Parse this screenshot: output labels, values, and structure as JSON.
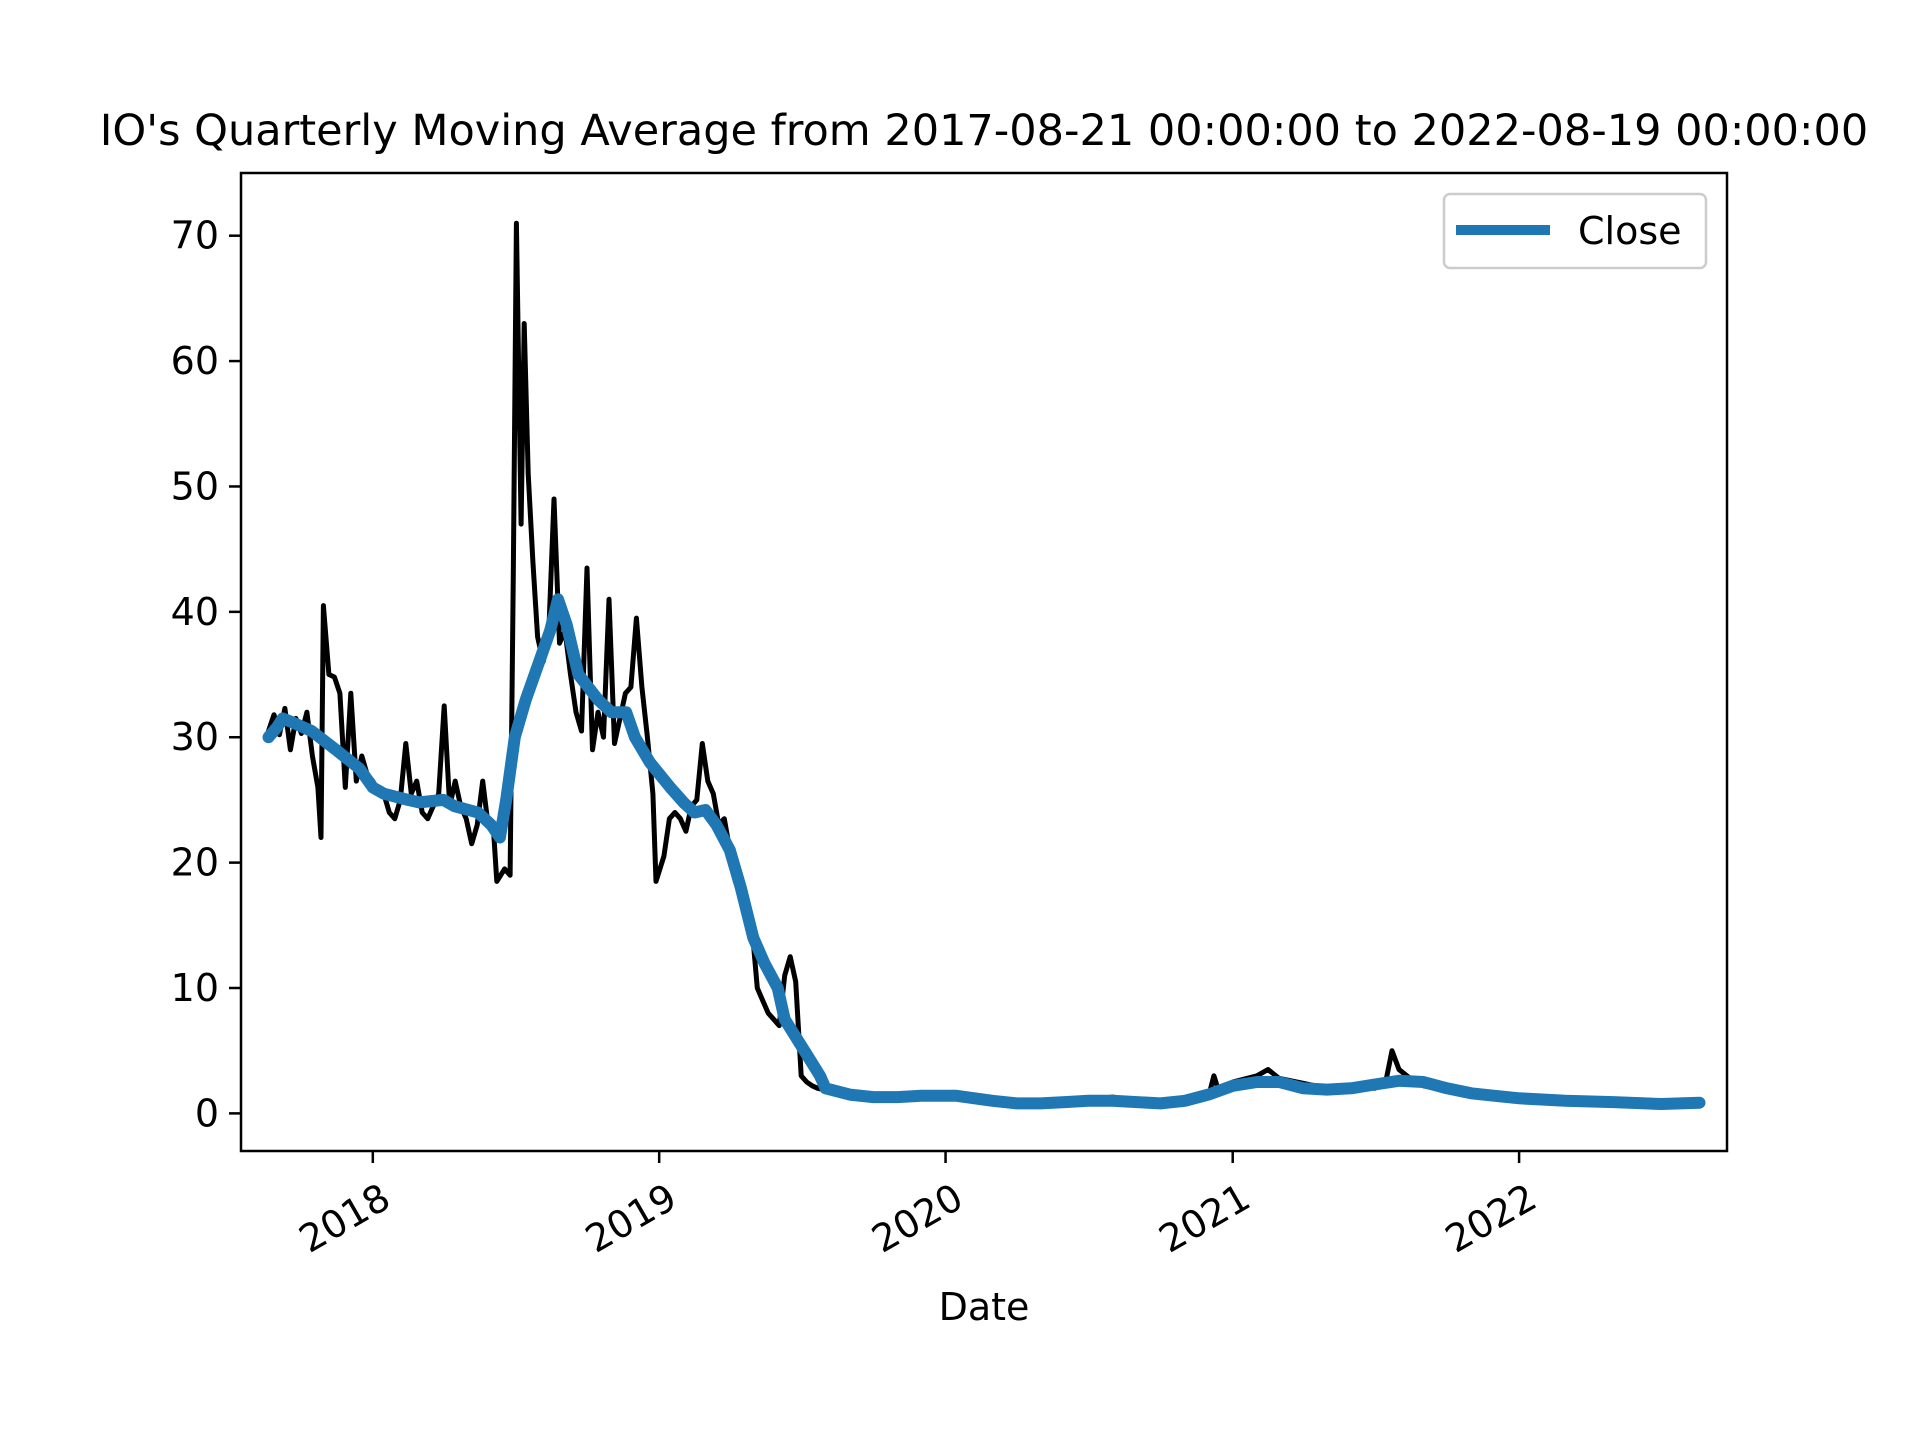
{
  "chart_data": {
    "type": "line",
    "title": "IO's Quarterly Moving Average from 2017-08-21 00:00:00 to 2022-08-19 00:00:00",
    "xlabel": "Date",
    "ylabel": "",
    "x_range": [
      "2017-08-21",
      "2022-08-19"
    ],
    "xlim": [
      "2017-07-17",
      "2022-09-23"
    ],
    "ylim": [
      -3,
      75
    ],
    "x_ticks": [
      "2018",
      "2019",
      "2020",
      "2021",
      "2022"
    ],
    "y_ticks": [
      "0",
      "10",
      "20",
      "30",
      "40",
      "50",
      "60",
      "70"
    ],
    "grid": false,
    "legend": {
      "position": "top-right",
      "entries": [
        "Close"
      ]
    },
    "series": [
      {
        "name": "",
        "color": "#000000",
        "points": [
          [
            "2017-08-21",
            30.5
          ],
          [
            "2017-08-28",
            31.8
          ],
          [
            "2017-09-04",
            30.2
          ],
          [
            "2017-09-11",
            32.3
          ],
          [
            "2017-09-18",
            29.0
          ],
          [
            "2017-09-25",
            31.5
          ],
          [
            "2017-10-02",
            30.3
          ],
          [
            "2017-10-09",
            32.0
          ],
          [
            "2017-10-16",
            28.5
          ],
          [
            "2017-10-23",
            26.0
          ],
          [
            "2017-10-27",
            22.0
          ],
          [
            "2017-10-30",
            40.5
          ],
          [
            "2017-11-06",
            35.0
          ],
          [
            "2017-11-13",
            34.8
          ],
          [
            "2017-11-20",
            33.5
          ],
          [
            "2017-11-27",
            26.0
          ],
          [
            "2017-12-04",
            33.5
          ],
          [
            "2017-12-11",
            26.5
          ],
          [
            "2017-12-18",
            28.5
          ],
          [
            "2017-12-25",
            27.0
          ],
          [
            "2018-01-01",
            26.5
          ],
          [
            "2018-01-08",
            25.5
          ],
          [
            "2018-01-15",
            25.5
          ],
          [
            "2018-01-22",
            24.0
          ],
          [
            "2018-01-29",
            23.5
          ],
          [
            "2018-02-05",
            25.0
          ],
          [
            "2018-02-12",
            29.5
          ],
          [
            "2018-02-19",
            25.5
          ],
          [
            "2018-02-26",
            26.5
          ],
          [
            "2018-03-05",
            24.0
          ],
          [
            "2018-03-12",
            23.5
          ],
          [
            "2018-03-19",
            24.5
          ],
          [
            "2018-03-26",
            25.5
          ],
          [
            "2018-04-02",
            32.5
          ],
          [
            "2018-04-09",
            24.5
          ],
          [
            "2018-04-16",
            26.5
          ],
          [
            "2018-04-23",
            24.5
          ],
          [
            "2018-04-30",
            23.5
          ],
          [
            "2018-05-07",
            21.5
          ],
          [
            "2018-05-14",
            23.0
          ],
          [
            "2018-05-21",
            26.5
          ],
          [
            "2018-05-28",
            23.0
          ],
          [
            "2018-06-04",
            22.5
          ],
          [
            "2018-06-08",
            18.5
          ],
          [
            "2018-06-18",
            19.5
          ],
          [
            "2018-06-25",
            19.0
          ],
          [
            "2018-06-29",
            43.0
          ],
          [
            "2018-07-03",
            71.0
          ],
          [
            "2018-07-09",
            47.0
          ],
          [
            "2018-07-13",
            63.0
          ],
          [
            "2018-07-18",
            51.0
          ],
          [
            "2018-07-24",
            44.0
          ],
          [
            "2018-07-30",
            38.0
          ],
          [
            "2018-08-06",
            36.0
          ],
          [
            "2018-08-13",
            38.0
          ],
          [
            "2018-08-20",
            49.0
          ],
          [
            "2018-08-27",
            37.5
          ],
          [
            "2018-09-03",
            38.5
          ],
          [
            "2018-09-10",
            35.0
          ],
          [
            "2018-09-17",
            32.0
          ],
          [
            "2018-09-24",
            30.5
          ],
          [
            "2018-10-01",
            43.5
          ],
          [
            "2018-10-08",
            29.0
          ],
          [
            "2018-10-15",
            32.0
          ],
          [
            "2018-10-22",
            30.0
          ],
          [
            "2018-10-29",
            41.0
          ],
          [
            "2018-11-05",
            29.5
          ],
          [
            "2018-11-12",
            31.5
          ],
          [
            "2018-11-19",
            33.5
          ],
          [
            "2018-11-26",
            34.0
          ],
          [
            "2018-12-03",
            39.5
          ],
          [
            "2018-12-10",
            34.0
          ],
          [
            "2018-12-17",
            30.0
          ],
          [
            "2018-12-24",
            25.5
          ],
          [
            "2018-12-28",
            18.5
          ],
          [
            "2019-01-07",
            20.5
          ],
          [
            "2019-01-14",
            23.5
          ],
          [
            "2019-01-21",
            24.0
          ],
          [
            "2019-01-28",
            23.5
          ],
          [
            "2019-02-04",
            22.5
          ],
          [
            "2019-02-11",
            24.5
          ],
          [
            "2019-02-18",
            25.0
          ],
          [
            "2019-02-25",
            29.5
          ],
          [
            "2019-03-04",
            26.5
          ],
          [
            "2019-03-11",
            25.5
          ],
          [
            "2019-03-18",
            23.0
          ],
          [
            "2019-03-25",
            23.5
          ],
          [
            "2019-04-01",
            21.0
          ],
          [
            "2019-04-08",
            18.5
          ],
          [
            "2019-04-15",
            18.0
          ],
          [
            "2019-04-22",
            16.5
          ],
          [
            "2019-04-29",
            15.0
          ],
          [
            "2019-05-06",
            10.0
          ],
          [
            "2019-05-13",
            9.0
          ],
          [
            "2019-05-20",
            8.0
          ],
          [
            "2019-05-27",
            7.5
          ],
          [
            "2019-06-03",
            7.0
          ],
          [
            "2019-06-10",
            11.0
          ],
          [
            "2019-06-17",
            12.5
          ],
          [
            "2019-06-24",
            10.5
          ],
          [
            "2019-07-01",
            3.0
          ],
          [
            "2019-07-08",
            2.5
          ],
          [
            "2019-07-15",
            2.2
          ],
          [
            "2019-07-22",
            2.0
          ],
          [
            "2019-08-05",
            1.8
          ],
          [
            "2019-09-01",
            1.6
          ],
          [
            "2019-10-01",
            1.4
          ],
          [
            "2019-11-01",
            1.3
          ],
          [
            "2019-12-01",
            1.4
          ],
          [
            "2020-01-01",
            1.4
          ],
          [
            "2020-02-01",
            1.2
          ],
          [
            "2020-03-01",
            1.0
          ],
          [
            "2020-04-01",
            0.7
          ],
          [
            "2020-05-01",
            0.9
          ],
          [
            "2020-06-01",
            1.0
          ],
          [
            "2020-07-01",
            1.1
          ],
          [
            "2020-08-01",
            1.3
          ],
          [
            "2020-09-01",
            1.0
          ],
          [
            "2020-10-01",
            1.0
          ],
          [
            "2020-11-01",
            1.1
          ],
          [
            "2020-12-01",
            1.3
          ],
          [
            "2020-12-08",
            3.0
          ],
          [
            "2020-12-15",
            1.6
          ],
          [
            "2021-01-01",
            2.5
          ],
          [
            "2021-02-01",
            3.0
          ],
          [
            "2021-02-15",
            3.5
          ],
          [
            "2021-03-01",
            2.8
          ],
          [
            "2021-04-01",
            2.4
          ],
          [
            "2021-05-01",
            2.0
          ],
          [
            "2021-06-01",
            2.2
          ],
          [
            "2021-07-01",
            2.0
          ],
          [
            "2021-07-15",
            2.5
          ],
          [
            "2021-07-23",
            5.0
          ],
          [
            "2021-08-01",
            3.5
          ],
          [
            "2021-08-15",
            2.8
          ],
          [
            "2021-09-01",
            2.2
          ],
          [
            "2021-10-01",
            1.8
          ]
        ]
      },
      {
        "name": "Close",
        "color": "#1f77b4",
        "points": [
          [
            "2017-08-21",
            30.0
          ],
          [
            "2017-09-01",
            30.8
          ],
          [
            "2017-09-08",
            31.5
          ],
          [
            "2017-09-20",
            31.2
          ],
          [
            "2017-10-15",
            30.5
          ],
          [
            "2017-11-15",
            29.0
          ],
          [
            "2017-12-15",
            27.5
          ],
          [
            "2018-01-01",
            26.0
          ],
          [
            "2018-01-15",
            25.5
          ],
          [
            "2018-02-15",
            25.0
          ],
          [
            "2018-03-01",
            24.8
          ],
          [
            "2018-04-01",
            25.0
          ],
          [
            "2018-04-15",
            24.5
          ],
          [
            "2018-05-15",
            24.0
          ],
          [
            "2018-06-01",
            23.0
          ],
          [
            "2018-06-12",
            22.0
          ],
          [
            "2018-06-20",
            25.0
          ],
          [
            "2018-07-01",
            30.0
          ],
          [
            "2018-07-15",
            33.0
          ],
          [
            "2018-08-01",
            36.0
          ],
          [
            "2018-08-15",
            38.5
          ],
          [
            "2018-08-25",
            41.0
          ],
          [
            "2018-09-05",
            39.0
          ],
          [
            "2018-09-20",
            35.0
          ],
          [
            "2018-10-15",
            33.0
          ],
          [
            "2018-11-01",
            32.0
          ],
          [
            "2018-11-20",
            32.0
          ],
          [
            "2018-12-01",
            30.0
          ],
          [
            "2018-12-20",
            28.0
          ],
          [
            "2019-01-15",
            26.0
          ],
          [
            "2019-02-01",
            24.8
          ],
          [
            "2019-02-15",
            24.0
          ],
          [
            "2019-03-01",
            24.2
          ],
          [
            "2019-03-15",
            23.0
          ],
          [
            "2019-04-01",
            21.0
          ],
          [
            "2019-04-15",
            18.0
          ],
          [
            "2019-05-01",
            14.0
          ],
          [
            "2019-05-15",
            12.0
          ],
          [
            "2019-06-01",
            10.0
          ],
          [
            "2019-06-10",
            7.5
          ],
          [
            "2019-06-25",
            6.0
          ],
          [
            "2019-07-10",
            4.5
          ],
          [
            "2019-07-25",
            3.0
          ],
          [
            "2019-08-01",
            2.0
          ],
          [
            "2019-09-01",
            1.5
          ],
          [
            "2019-10-01",
            1.3
          ],
          [
            "2019-11-01",
            1.3
          ],
          [
            "2019-12-01",
            1.4
          ],
          [
            "2020-01-15",
            1.4
          ],
          [
            "2020-03-01",
            1.0
          ],
          [
            "2020-04-01",
            0.8
          ],
          [
            "2020-05-01",
            0.8
          ],
          [
            "2020-06-01",
            0.9
          ],
          [
            "2020-07-01",
            1.0
          ],
          [
            "2020-08-01",
            1.0
          ],
          [
            "2020-09-01",
            0.9
          ],
          [
            "2020-10-01",
            0.8
          ],
          [
            "2020-11-01",
            1.0
          ],
          [
            "2020-12-01",
            1.5
          ],
          [
            "2021-01-01",
            2.2
          ],
          [
            "2021-02-01",
            2.5
          ],
          [
            "2021-03-01",
            2.5
          ],
          [
            "2021-04-01",
            2.0
          ],
          [
            "2021-05-01",
            1.9
          ],
          [
            "2021-06-01",
            2.0
          ],
          [
            "2021-07-01",
            2.3
          ],
          [
            "2021-08-01",
            2.6
          ],
          [
            "2021-09-01",
            2.5
          ],
          [
            "2021-10-01",
            2.0
          ],
          [
            "2021-11-01",
            1.6
          ],
          [
            "2021-12-01",
            1.4
          ],
          [
            "2022-01-01",
            1.2
          ],
          [
            "2022-03-01",
            1.0
          ],
          [
            "2022-05-01",
            0.9
          ],
          [
            "2022-07-01",
            0.75
          ],
          [
            "2022-08-19",
            0.85
          ]
        ]
      }
    ]
  }
}
